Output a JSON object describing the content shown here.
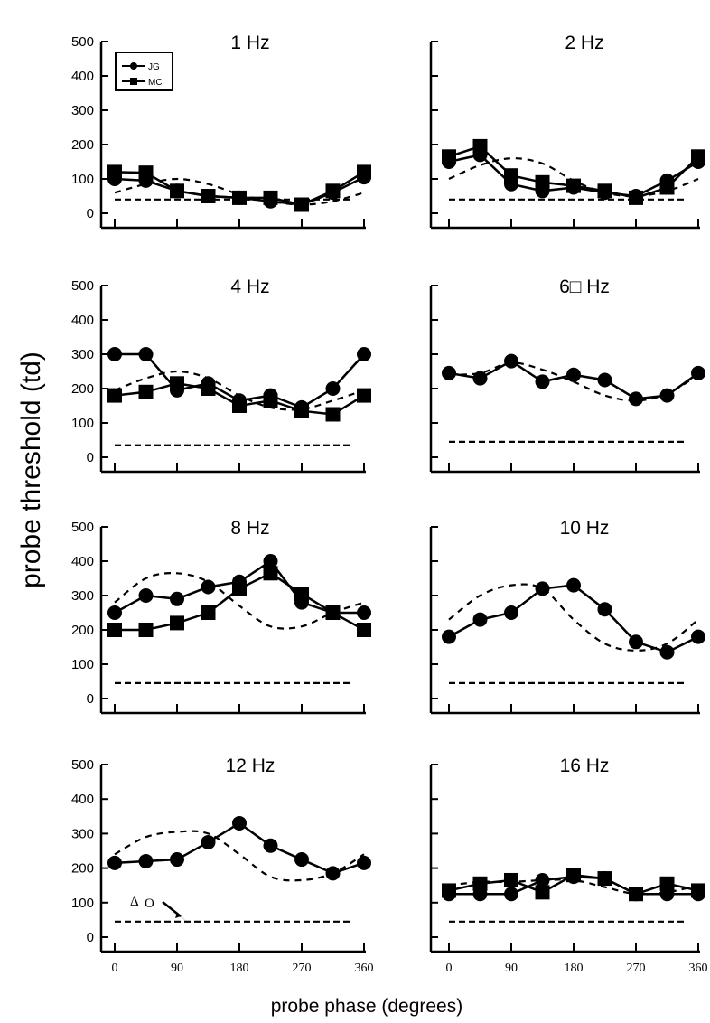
{
  "chart_data": {
    "type": "line",
    "ylabel": "probe threshold (td)",
    "xlabel": "probe phase (degrees)",
    "x": [
      0,
      45,
      90,
      135,
      180,
      225,
      270,
      315,
      360
    ],
    "xticks": [
      0,
      90,
      180,
      270,
      360
    ],
    "xtick_labels": [
      "0",
      "90",
      "180",
      "270",
      "360"
    ],
    "yticks": [
      0,
      100,
      200,
      300,
      400,
      500
    ],
    "ytick_labels": [
      "0",
      "100",
      "200",
      "300",
      "400",
      "500"
    ],
    "xlim": [
      0,
      360
    ],
    "ylim": [
      0,
      500
    ],
    "grid": false,
    "legend": {
      "placement": "top-left of first panel",
      "entries": [
        {
          "name": "JG",
          "marker": "circle"
        },
        {
          "name": "MC",
          "marker": "square"
        }
      ]
    },
    "annotation": {
      "panel": "12 Hz",
      "text": "Δ",
      "subscript": "O",
      "points_to": "baseline dashed line"
    },
    "panels": [
      {
        "title": "1 Hz",
        "series": [
          {
            "name": "JG",
            "marker": "circle",
            "values": [
              100,
              95,
              65,
              50,
              45,
              35,
              25,
              60,
              105
            ]
          },
          {
            "name": "MC",
            "marker": "square",
            "values": [
              120,
              118,
              65,
              50,
              45,
              45,
              25,
              65,
              120
            ]
          }
        ],
        "model_curve": [
          60,
          85,
          100,
          85,
          55,
          35,
          25,
          35,
          60
        ],
        "baseline": 40
      },
      {
        "title": "2 Hz",
        "series": [
          {
            "name": "JG",
            "marker": "circle",
            "values": [
              150,
              170,
              85,
              65,
              75,
              60,
              50,
              95,
              150
            ]
          },
          {
            "name": "MC",
            "marker": "square",
            "values": [
              165,
              195,
              110,
              90,
              80,
              65,
              45,
              75,
              165
            ]
          }
        ],
        "model_curve": [
          100,
          140,
          160,
          145,
          95,
          60,
          50,
          65,
          100
        ],
        "baseline": 40
      },
      {
        "title": "4 Hz",
        "series": [
          {
            "name": "JG",
            "marker": "circle",
            "values": [
              300,
              300,
              195,
              215,
              165,
              180,
              145,
              200,
              300
            ]
          },
          {
            "name": "MC",
            "marker": "square",
            "values": [
              180,
              190,
              215,
              200,
              150,
              165,
              135,
              125,
              180
            ]
          }
        ],
        "model_curve": [
          195,
          230,
          250,
          230,
          180,
          145,
          140,
          165,
          195
        ],
        "baseline": 35
      },
      {
        "title": "6□ Hz",
        "series": [
          {
            "name": "JG",
            "marker": "circle",
            "values": [
              245,
              230,
              280,
              220,
              240,
              225,
              170,
              180,
              245
            ]
          }
        ],
        "model_curve": [
          240,
          245,
          275,
          255,
          220,
          180,
          165,
          185,
          240
        ],
        "baseline": 45
      },
      {
        "title": "8 Hz",
        "series": [
          {
            "name": "JG",
            "marker": "circle",
            "values": [
              250,
              300,
              290,
              325,
              340,
              400,
              280,
              250,
              250
            ]
          },
          {
            "name": "MC",
            "marker": "square",
            "values": [
              200,
              200,
              220,
              250,
              320,
              365,
              305,
              250,
              200
            ]
          }
        ],
        "model_curve": [
          280,
          350,
          365,
          340,
          270,
          210,
          210,
          250,
          280
        ],
        "baseline": 45
      },
      {
        "title": "10 Hz",
        "series": [
          {
            "name": "JG",
            "marker": "circle",
            "values": [
              180,
              230,
              250,
              320,
              330,
              260,
              165,
              135,
              180
            ]
          }
        ],
        "model_curve": [
          230,
          300,
          330,
          320,
          230,
          160,
          140,
          160,
          230
        ],
        "baseline": 45
      },
      {
        "title": "12 Hz",
        "series": [
          {
            "name": "JG",
            "marker": "circle",
            "values": [
              215,
              220,
              225,
              275,
              330,
              265,
              225,
              185,
              215
            ]
          }
        ],
        "model_curve": [
          240,
          290,
          305,
          300,
          240,
          175,
          165,
          185,
          240
        ],
        "baseline": 45
      },
      {
        "title": "16 Hz",
        "series": [
          {
            "name": "JG",
            "marker": "circle",
            "values": [
              125,
              125,
              125,
              165,
              175,
              170,
              125,
              125,
              125
            ]
          },
          {
            "name": "MC",
            "marker": "square",
            "values": [
              135,
              155,
              165,
              130,
              180,
              170,
              125,
              155,
              135
            ]
          }
        ],
        "model_curve": [
          150,
          160,
          160,
          165,
          165,
          145,
          125,
          130,
          150
        ],
        "baseline": 45
      }
    ]
  }
}
